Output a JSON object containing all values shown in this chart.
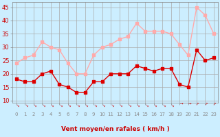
{
  "x": [
    0,
    1,
    2,
    3,
    4,
    5,
    6,
    7,
    8,
    9,
    10,
    11,
    12,
    13,
    14,
    15,
    16,
    17,
    18,
    19,
    20,
    21,
    22,
    23
  ],
  "wind_avg": [
    18,
    17,
    17,
    20,
    21,
    16,
    15,
    13,
    13,
    17,
    17,
    20,
    20,
    20,
    23,
    22,
    21,
    22,
    22,
    16,
    15,
    29,
    25,
    26
  ],
  "wind_gust": [
    24,
    26,
    27,
    32,
    30,
    29,
    24,
    20,
    20,
    27,
    30,
    31,
    33,
    34,
    39,
    36,
    36,
    36,
    35,
    31,
    27,
    45,
    42,
    35
  ],
  "avg_color": "#dd0000",
  "gust_color": "#ffaaaa",
  "bg_color": "#cceeff",
  "grid_color": "#aaaaaa",
  "xlabel": "Vent moyen/en rafales ( km/h )",
  "xlabel_color": "#cc0000",
  "yticks": [
    10,
    15,
    20,
    25,
    30,
    35,
    40,
    45
  ],
  "ylim": [
    9,
    47
  ],
  "xlim": [
    -0.5,
    23.5
  ],
  "wind_dirs": [
    225,
    225,
    225,
    225,
    225,
    225,
    225,
    225,
    225,
    225,
    225,
    225,
    225,
    225,
    225,
    225,
    225,
    225,
    225,
    270,
    270,
    315,
    315,
    315
  ]
}
